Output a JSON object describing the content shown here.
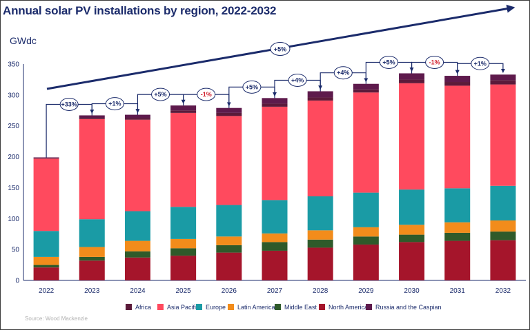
{
  "title": "Annual solar PV installations by region, 2022-2032",
  "unit_label": "GWdc",
  "source": "Source: Wood Mackenzie",
  "trend_label": "+5%",
  "colors": {
    "Africa": "#5b1a3a",
    "Asia Pacific": "#ff4a5e",
    "Europe": "#1a9ba5",
    "Latin America": "#f28c1b",
    "Middle East": "#2f5a2a",
    "North America": "#a5152b",
    "Russia and the Caspian": "#5e1a4c",
    "trend": "#1b2b6b",
    "negative_growth": "#d01c2a",
    "positive_growth": "#1b2b6b"
  },
  "chart_data": {
    "type": "bar",
    "stacked": true,
    "title": "Annual solar PV installations by region, 2022-2032",
    "ylabel": "GWdc",
    "ylim": [
      0,
      350
    ],
    "yticks": [
      0,
      50,
      100,
      150,
      200,
      250,
      300,
      350
    ],
    "categories": [
      "2022",
      "2023",
      "2024",
      "2025",
      "2026",
      "2027",
      "2028",
      "2029",
      "2030",
      "2031",
      "2032"
    ],
    "series": [
      {
        "name": "North America",
        "values": [
          21,
          32,
          37,
          40,
          45,
          48,
          53,
          58,
          62,
          64,
          65
        ]
      },
      {
        "name": "Middle East",
        "values": [
          4,
          6,
          10,
          12,
          12,
          14,
          13,
          13,
          12,
          13,
          14
        ]
      },
      {
        "name": "Latin America",
        "values": [
          13,
          16,
          17,
          15,
          14,
          14,
          15,
          15,
          16,
          17,
          18
        ]
      },
      {
        "name": "Europe",
        "values": [
          42,
          45,
          48,
          52,
          51,
          54,
          55,
          56,
          57,
          55,
          56
        ]
      },
      {
        "name": "Asia Pacific",
        "values": [
          117,
          162,
          148,
          152,
          144,
          151,
          155,
          162,
          172,
          166,
          164
        ]
      },
      {
        "name": "Africa",
        "values": [
          1,
          2,
          3,
          4,
          5,
          5,
          5,
          5,
          6,
          6,
          7
        ]
      },
      {
        "name": "Russia and the Caspian",
        "values": [
          1,
          4,
          5,
          8,
          8,
          9,
          10,
          9,
          10,
          10,
          9
        ]
      }
    ],
    "totals": [
      199,
      267,
      268,
      283,
      279,
      295,
      306,
      318,
      335,
      331,
      333
    ],
    "growth_labels": [
      "+33%",
      "+1%",
      "+5%",
      "-1%",
      "+5%",
      "+4%",
      "+4%",
      "+5%",
      "-1%",
      "+1%"
    ],
    "legend": [
      "Africa",
      "Asia Pacific",
      "Europe",
      "Latin America",
      "Middle East",
      "North America",
      "Russia and the Caspian"
    ],
    "legend_position": "bottom",
    "grid": false
  }
}
